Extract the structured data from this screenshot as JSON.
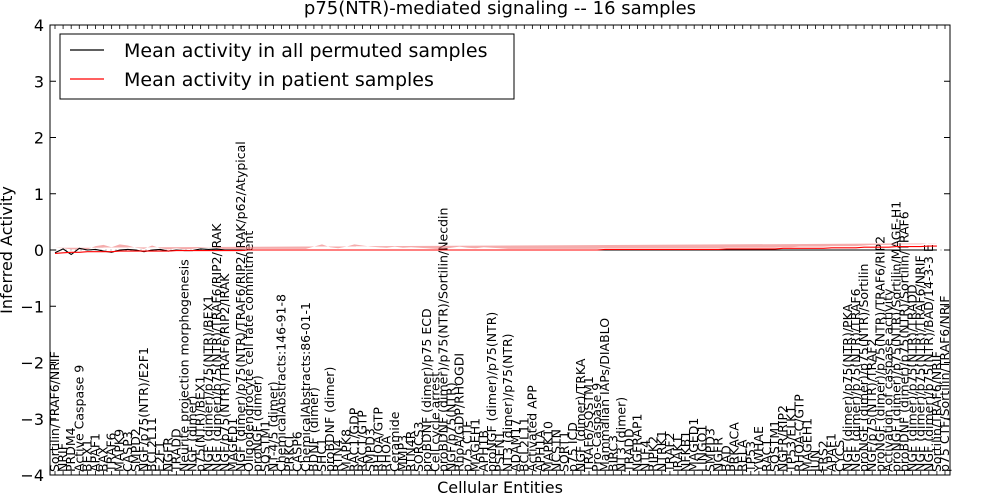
{
  "chart_data": {
    "type": "line",
    "title": "p75(NTR)-mediated signaling -- 16 samples",
    "xlabel": "Cellular Entities",
    "ylabel": "Inferred Activity",
    "ylim": [
      -4,
      4
    ],
    "yticks": [
      "4",
      "3",
      "2",
      "1",
      "0",
      "−1",
      "−2",
      "−3",
      "−4"
    ],
    "legend_position": "top-left",
    "colors": {
      "permuted": "#000000",
      "patient": "#ff0000",
      "band": "#f08080"
    },
    "series": [
      {
        "name": "Mean activity in all permuted samples",
        "color": "#000000"
      },
      {
        "name": "Mean activity in patient samples",
        "color": "#ff0000"
      }
    ],
    "entities": [
      "Sortilin/TRAF6/NRIF",
      "NRIF",
      "PRDM4",
      "Active Caspase 9",
      "BEX1",
      "APAF1",
      "BAX",
      "TRAF6",
      "MAPK9",
      "CASP3",
      "SMPD2",
      "NGF/p75(NTR)/E2F1",
      "BCL2L11",
      "E2F1",
      "NGFR",
      "TRADD",
      "Neurite projection morphogenesis",
      "NGF (dimer)",
      "p75(NTR)/BEX1",
      "NGF (dimer)/p75(NTR)/BEX1",
      "NGF (dimer)/p75(NTR)/TRAF6/RIP2/IRAK",
      "NGF/p75(NTR)/TRAF6/RIP2/IRAK",
      "MAGED1",
      "NGF (dimer)/p75(NTR)/TRAF6/RIP2/IRAK/p62/Atypical",
      "Oligodendrocyte cell fate commitment",
      "proNGF (dimer)",
      "SQSTM1",
      "NT-4/5 (dimer)",
      "ChemicalAbstracts:146-91-8",
      "PRKCI",
      "CASP6",
      "ChemicalAbstracts:86-01-1",
      "BDNF (dimer)",
      "SHC1",
      "proBDNF (dimer)",
      "RTN4",
      "MAPK8",
      "RAC1/GDP",
      "RAC1/GTP",
      "SMPD3",
      "RHOA/GTP",
      "RHOA",
      "Ceramide",
      "MMP3",
      "RTN4R",
      "SORCS3",
      "proBDNF (dimer)/p75 ECD",
      "Cell cycle arrest",
      "proBDNF (dimer)/p75(NTR)/Sortilin/Necdin",
      "NGF/p75(NTR)",
      "RhoA/GDP/RHOGDI",
      "p75 CTF",
      "MAGEH1",
      "APH1B",
      "proNGF (dimer)/p75(NTR)",
      "PSEN1",
      "NT3 (dimer)/p75(NTR)",
      "ADAM17",
      "BCL2L11",
      "Activated APP",
      "APH1A",
      "MAPK10",
      "NCSTN",
      "SORT1",
      "p75 ICD",
      "NGF (dimer)/TRKA",
      "TRAF6/SQSTM1",
      "Pro-Caspase 9",
      "Mammalian IAPs/DIABLO",
      "BIRC3",
      "NT3 (dimer)",
      "TRADD",
      "NGFRAP1",
      "NTF4",
      "RIPK2",
      "NTRK1",
      "TRAF2",
      "IRAK1",
      "NFKB1",
      "MAGED1",
      "LINGO1",
      "SMPD3",
      "NGFR",
      "BAD",
      "PRKACA",
      "RELA",
      "TP53",
      "YWHAE",
      "RAC1",
      "SQSTM1",
      "NGFR/RIP2",
      "TP53/ELK1",
      "RHOA-C/GTP",
      "MAGEH1",
      "JUN",
      "FRS2",
      "APAF1",
      "CYCS",
      "NGF (dimer)/p75(NTR)/PKA",
      "NGF (dimer)/p75(NTR)/TRAF6",
      "proNGF (dimer)/p75(NTR)/Sortilin",
      "NGF/p75(NTR)/TRAF2",
      "proNGF (dimer)/p75(NTR)/TRAF6/RIP2",
      "Activation of caspase activity",
      "proNGF (dimer)/p75(NTR)/Sortilin/MAGE-H1",
      "proBDNF (dimer)/p75(NTR)/Sortilin/TRAF6",
      "NGF (dimer)/p75(NTR)/TRADD",
      "NGF (dimer)/p75(NTR)/TRAF6/NRIF",
      "NGF (dimer)/p75(NTR)/BAD/14-3-3 E",
      "Sortilin/TRAF6/NRIF",
      "p75 CTF/Sortilin/TRAF6/NRIF"
    ],
    "permuted_mean": [
      -0.05,
      0.02,
      -0.08,
      0.03,
      0.0,
      0.01,
      -0.02,
      -0.04,
      0.0,
      0.01,
      0.0,
      -0.03,
      0.0,
      0.01,
      -0.02,
      0.0,
      -0.01,
      -0.01,
      0.02,
      0.01,
      0.02,
      0.0,
      0.0,
      0.0,
      0.0,
      0.0,
      0.0,
      0.0,
      0.0,
      0.0,
      0.0,
      0.0,
      0.0,
      0.0,
      0.0,
      0.0,
      0.0,
      0.0,
      0.0,
      0.0,
      0.0,
      0.0,
      0.0,
      0.0,
      0.0,
      0.0,
      0.0,
      0.0,
      0.0,
      0.0,
      0.0,
      0.0,
      0.0,
      0.0,
      0.0,
      0.0,
      0.0,
      0.0,
      0.0,
      0.0,
      0.0,
      0.0,
      0.0,
      0.0,
      0.0,
      0.0,
      0.0,
      0.0,
      0.0,
      0.0,
      0.0,
      0.0,
      0.0,
      0.0,
      0.0,
      0.0,
      0.0,
      0.0,
      0.0,
      0.0,
      0.0,
      0.0,
      0.0,
      0.0,
      0.0,
      0.0,
      0.0,
      0.0,
      0.0,
      0.0,
      0.0,
      0.0,
      0.0,
      0.0,
      0.0,
      0.0,
      0.0,
      0.0,
      0.0,
      0.0,
      0.0,
      0.0,
      0.0,
      0.0,
      0.0,
      0.0,
      0.0,
      0.0,
      0.0,
      0.0
    ],
    "patient_mean": [
      -0.06,
      -0.05,
      -0.04,
      -0.04,
      -0.03,
      -0.03,
      -0.03,
      -0.03,
      -0.02,
      -0.02,
      -0.02,
      -0.02,
      -0.02,
      -0.02,
      -0.02,
      -0.01,
      -0.01,
      -0.01,
      -0.01,
      -0.01,
      -0.01,
      -0.01,
      -0.01,
      -0.01,
      0.0,
      0.0,
      0.0,
      0.0,
      0.0,
      0.0,
      0.0,
      0.0,
      0.0,
      0.0,
      0.0,
      0.0,
      0.0,
      0.0,
      0.0,
      0.0,
      0.0,
      0.0,
      0.0,
      0.0,
      0.0,
      0.0,
      0.0,
      0.0,
      0.0,
      0.0,
      0.0,
      0.0,
      0.0,
      0.0,
      0.0,
      0.0,
      0.0,
      0.0,
      0.0,
      0.0,
      0.0,
      0.0,
      0.0,
      0.0,
      0.0,
      0.0,
      0.0,
      0.0,
      0.01,
      0.01,
      0.01,
      0.01,
      0.01,
      0.01,
      0.01,
      0.01,
      0.01,
      0.01,
      0.01,
      0.01,
      0.01,
      0.01,
      0.01,
      0.02,
      0.02,
      0.02,
      0.02,
      0.02,
      0.02,
      0.02,
      0.03,
      0.03,
      0.03,
      0.03,
      0.03,
      0.03,
      0.04,
      0.04,
      0.04,
      0.04,
      0.05,
      0.05,
      0.05,
      0.05,
      0.06,
      0.06,
      0.06,
      0.06,
      0.07,
      0.07
    ],
    "patient_spread": [
      0.1,
      0.08,
      0.05,
      0.05,
      0.04,
      0.1,
      0.12,
      0.08,
      0.12,
      0.1,
      0.06,
      0.04,
      0.1,
      0.05,
      0.03,
      0.04,
      0.02,
      0.03,
      0.05,
      0.06,
      0.05,
      0.02,
      0.02,
      0.02,
      0.02,
      0.02,
      0.02,
      0.02,
      0.02,
      0.02,
      0.02,
      0.02,
      0.06,
      0.1,
      0.05,
      0.03,
      0.06,
      0.1,
      0.08,
      0.06,
      0.05,
      0.04,
      0.06,
      0.04,
      0.05,
      0.04,
      0.03,
      0.02,
      0.02,
      0.04,
      0.06,
      0.04,
      0.03,
      0.05,
      0.04,
      0.03,
      0.02,
      0.02,
      0.02,
      0.02,
      0.02,
      0.02,
      0.02,
      0.02,
      0.02,
      0.02,
      0.02,
      0.02,
      0.02,
      0.02,
      0.02,
      0.02,
      0.02,
      0.02,
      0.02,
      0.02,
      0.02,
      0.02,
      0.02,
      0.02,
      0.02,
      0.02,
      0.02,
      0.02,
      0.02,
      0.02,
      0.02,
      0.02,
      0.02,
      0.02,
      0.02,
      0.02,
      0.03,
      0.03,
      0.03,
      0.03,
      0.03,
      0.03,
      0.03,
      0.03,
      0.03,
      0.04,
      0.04,
      0.04,
      0.04,
      0.04,
      0.04,
      0.04,
      0.05,
      0.05
    ]
  }
}
